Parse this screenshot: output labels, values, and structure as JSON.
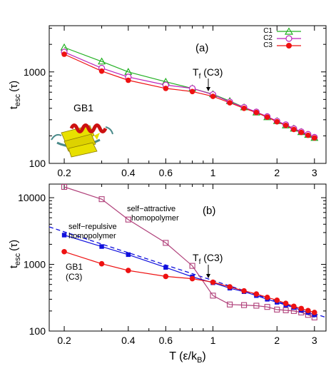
{
  "colors": {
    "C1": "#22b022",
    "C2": "#bb22bb",
    "C3": "#ee1111",
    "repulsive": "#1010dd",
    "attractive": "#b0407a",
    "protein_helix": "#cc1111",
    "protein_sheet": "#e8e000",
    "protein_loop": "#4a8a8a"
  },
  "chart_data": [
    {
      "type": "line",
      "panel_label": "(a)",
      "ylabel_main": "t",
      "ylabel_sub": "esc",
      "ylabel_unit": "(τ)",
      "xscale": "log",
      "yscale": "log",
      "xlim": [
        0.17,
        3.4
      ],
      "ylim": [
        100,
        3200
      ],
      "xticks": [
        0.2,
        0.4,
        0.6,
        1,
        2,
        3
      ],
      "xtick_labels": [
        "0.2",
        "0.4",
        "0.6",
        "1",
        "2",
        "3"
      ],
      "yticks": [
        100,
        1000
      ],
      "ytick_labels": [
        "100",
        "1000"
      ],
      "legend_position": "top-right",
      "annotation": {
        "main": "T",
        "sub": "f",
        "rest": " (C3)",
        "x": 1.0
      },
      "inset_label": "GB1",
      "series": [
        {
          "name": "C1",
          "marker": "triangle-open",
          "color_key": "C1",
          "x": [
            0.2,
            0.3,
            0.4,
            0.6,
            0.8,
            1.0,
            1.2,
            1.4,
            1.6,
            1.8,
            2.0,
            2.2,
            2.4,
            2.6,
            2.8,
            3.0
          ],
          "y": [
            1850,
            1300,
            1000,
            780,
            660,
            570,
            480,
            410,
            360,
            320,
            290,
            260,
            240,
            220,
            205,
            190
          ]
        },
        {
          "name": "C2",
          "marker": "circle-open",
          "color_key": "C2",
          "x": [
            0.2,
            0.3,
            0.4,
            0.6,
            0.8,
            1.0,
            1.2,
            1.4,
            1.6,
            1.8,
            2.0,
            2.2,
            2.4,
            2.6,
            2.8,
            3.0
          ],
          "y": [
            1650,
            1100,
            880,
            720,
            660,
            565,
            470,
            410,
            365,
            325,
            290,
            265,
            240,
            222,
            208,
            193
          ]
        },
        {
          "name": "C3",
          "marker": "circle-filled",
          "color_key": "C3",
          "x": [
            0.2,
            0.3,
            0.4,
            0.6,
            0.8,
            1.0,
            1.2,
            1.4,
            1.6,
            1.8,
            2.0,
            2.2,
            2.4,
            2.6,
            2.8,
            3.0
          ],
          "y": [
            1560,
            1020,
            810,
            660,
            610,
            540,
            460,
            400,
            360,
            320,
            285,
            260,
            235,
            218,
            203,
            190
          ]
        }
      ]
    },
    {
      "type": "line",
      "panel_label": "(b)",
      "ylabel_main": "t",
      "ylabel_sub": "esc",
      "ylabel_unit": "(τ)",
      "xlabel_main": "T (ε/k",
      "xlabel_sub": "B",
      "xlabel_end": ")",
      "xscale": "log",
      "yscale": "log",
      "xlim": [
        0.17,
        3.4
      ],
      "ylim": [
        100,
        16000
      ],
      "xticks": [
        0.2,
        0.4,
        0.6,
        1,
        2,
        3
      ],
      "xtick_labels": [
        "0.2",
        "0.4",
        "0.6",
        "1",
        "2",
        "3"
      ],
      "yticks": [
        100,
        1000,
        10000
      ],
      "ytick_labels": [
        "100",
        "1000",
        "10000"
      ],
      "annotation": {
        "main": "T",
        "sub": "f",
        "rest": " (C3)",
        "x": 1.0
      },
      "labels": {
        "attractive": [
          "self−attractive",
          "homopolymer"
        ],
        "repulsive": [
          "self−repulsive",
          "homopolymer"
        ],
        "gb1": [
          "GB1",
          "(C3)"
        ]
      },
      "series": [
        {
          "id": "attractive",
          "marker": "square-open",
          "color_key": "attractive",
          "x": [
            0.2,
            0.3,
            0.4,
            0.6,
            0.8,
            1.0,
            1.2,
            1.4,
            1.6,
            1.8,
            2.0,
            2.2,
            2.4,
            2.6,
            2.8,
            3.0
          ],
          "y": [
            14500,
            9500,
            4700,
            2100,
            950,
            340,
            250,
            245,
            240,
            230,
            210,
            205,
            200,
            190,
            175,
            160
          ]
        },
        {
          "id": "repulsive",
          "marker": "square-filled",
          "color_key": "repulsive",
          "x": [
            0.2,
            0.3,
            0.4,
            0.6,
            0.8,
            1.0,
            1.2,
            1.4,
            1.6,
            1.8,
            2.0,
            2.2,
            2.4,
            2.6,
            2.8,
            3.0
          ],
          "y": [
            2750,
            1850,
            1400,
            900,
            650,
            530,
            440,
            390,
            340,
            300,
            270,
            245,
            225,
            205,
            190,
            175
          ]
        },
        {
          "id": "gb1",
          "marker": "circle-filled",
          "color_key": "C3",
          "x": [
            0.2,
            0.3,
            0.4,
            0.6,
            0.8,
            1.0,
            1.2,
            1.4,
            1.6,
            1.8,
            2.0,
            2.2,
            2.4,
            2.6,
            2.8,
            3.0
          ],
          "y": [
            1550,
            1020,
            810,
            660,
            610,
            540,
            460,
            400,
            360,
            320,
            290,
            260,
            235,
            218,
            203,
            190
          ]
        }
      ],
      "fit_line": {
        "color_key": "repulsive",
        "style": "dashed",
        "x": [
          0.17,
          3.4
        ],
        "y": [
          3650,
          160
        ]
      }
    }
  ]
}
